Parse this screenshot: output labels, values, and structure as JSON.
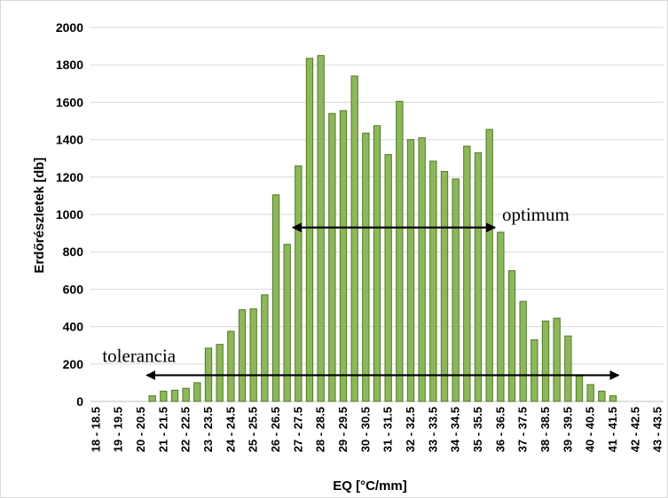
{
  "chart_data": {
    "type": "bar",
    "xlabel": "EQ [°C/mm]",
    "ylabel": "Erdőrészletek [db]",
    "ylim": [
      0,
      2000
    ],
    "yticks": [
      0,
      200,
      400,
      600,
      800,
      1000,
      1200,
      1400,
      1600,
      1800,
      2000
    ],
    "grid": "horizontal",
    "legend": "none",
    "bar_color": "#8db75a",
    "bar_edge_color": "#4f7a28",
    "categories": [
      "18 - 18.5",
      "18.5 - 19",
      "19 - 19.5",
      "19.5 - 20",
      "20 - 20.5",
      "20.5 - 21",
      "21 - 21.5",
      "21.5 - 22",
      "22 - 22.5",
      "22.5 - 23",
      "23 - 23.5",
      "23.5 - 24",
      "24 - 24.5",
      "24.5 - 25",
      "25 - 25.5",
      "25.5 - 26",
      "26 - 26.5",
      "26.5 - 27",
      "27 - 27.5",
      "27.5 - 28",
      "28 - 28.5",
      "28.5 - 29",
      "29 - 29.5",
      "29.5 - 30",
      "30 - 30.5",
      "30.5 - 31",
      "31 - 31.5",
      "31.5 - 32",
      "32 - 32.5",
      "32.5 - 33",
      "33 - 33.5",
      "33.5 - 34",
      "34 - 34.5",
      "34.5 - 35",
      "35 - 35.5",
      "35.5 - 36",
      "36 - 36.5",
      "36.5 - 37",
      "37 - 37.5",
      "37.5 - 38",
      "38 - 38.5",
      "38.5 - 39",
      "39 - 39.5",
      "39.5 - 40",
      "40 - 40.5",
      "40.5 - 41",
      "41 - 41.5",
      "41.5 - 42",
      "42 - 42.5",
      "42.5 - 43",
      "43 - 43.5"
    ],
    "tick_labels": [
      "18 - 18.5",
      "19 - 19.5",
      "20 - 20.5",
      "21 - 21.5",
      "22 - 22.5",
      "23 - 23.5",
      "24 - 24.5",
      "25 - 25.5",
      "26 - 26.5",
      "27 - 27.5",
      "28 - 28.5",
      "29 - 29.5",
      "30 - 30.5",
      "31 - 31.5",
      "32 - 32.5",
      "33 - 33.5",
      "34 - 34.5",
      "35 - 35.5",
      "36 - 36.5",
      "37 - 37.5",
      "38 - 38.5",
      "39 - 39.5",
      "40 - 40.5",
      "41 - 41.5",
      "42 - 42.5",
      "43 - 43.5"
    ],
    "values": [
      0,
      0,
      0,
      0,
      0,
      30,
      55,
      60,
      70,
      100,
      285,
      305,
      375,
      490,
      495,
      570,
      1105,
      840,
      1260,
      1835,
      1850,
      1540,
      1555,
      1740,
      1435,
      1475,
      1320,
      1605,
      1400,
      1410,
      1285,
      1230,
      1190,
      1365,
      1330,
      1455,
      905,
      700,
      535,
      330,
      430,
      445,
      350,
      135,
      90,
      55,
      30,
      0,
      0,
      0,
      0
    ],
    "annotations": [
      {
        "text": "optimum",
        "from": "27 - 27.5",
        "to": "35.5 - 36",
        "y": 930
      },
      {
        "text": "tolerancia",
        "from": "20.5 - 21",
        "to": "41 - 41.5",
        "y": 140
      }
    ]
  }
}
